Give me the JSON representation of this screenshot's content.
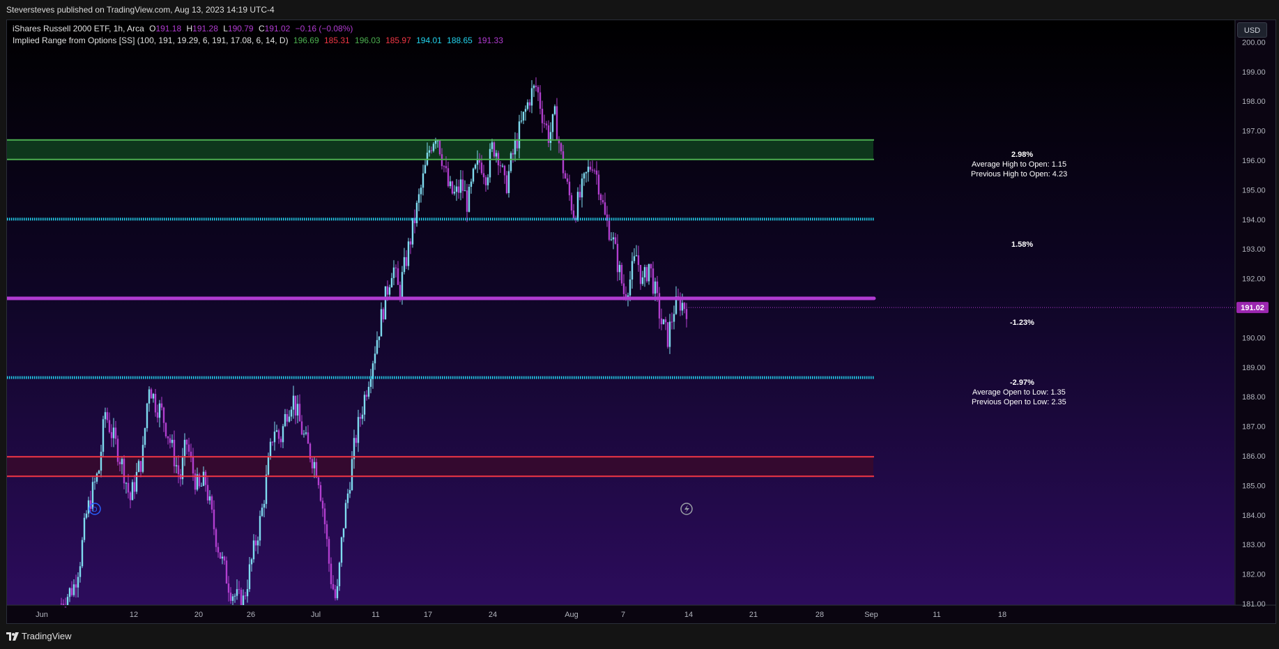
{
  "publisher": "Steversteves published on TradingView.com, Aug 13, 2023 14:19 UTC-4",
  "currency_button": "USD",
  "footer_logo": "TradingView",
  "legend": {
    "symbol": "iShares Russell 2000 ETF, 1h, Arca",
    "ohlc": [
      {
        "label": "O",
        "value": "191.18"
      },
      {
        "label": "H",
        "value": "191.28"
      },
      {
        "label": "L",
        "value": "190.79"
      },
      {
        "label": "C",
        "value": "191.02"
      }
    ],
    "change": "−0.16 (−0.08%)",
    "indicator": "Implied Range from Options [SS] (100, 191, 19.29, 6, 191, 17.08, 6, 14, D)",
    "indicator_values": [
      {
        "value": "196.69",
        "color": "#4caf50"
      },
      {
        "value": "185.31",
        "color": "#f23645"
      },
      {
        "value": "196.03",
        "color": "#4caf50"
      },
      {
        "value": "185.97",
        "color": "#f23645"
      },
      {
        "value": "194.01",
        "color": "#22d3ee"
      },
      {
        "value": "188.65",
        "color": "#22d3ee"
      },
      {
        "value": "191.33",
        "color": "#b13bd1"
      }
    ]
  },
  "annotations": {
    "upper_pct": "2.98%",
    "avg_high_to_open": "Average High to Open: 1.15",
    "prev_high_to_open": "Previous High to Open: 4.23",
    "upper_mid_pct": "1.58%",
    "lower_mid_pct": "-1.23%",
    "lower_pct": "-2.97%",
    "avg_open_to_low": "Average Open to Low: 1.35",
    "prev_open_to_low": "Previous Open to Low: 2.35"
  },
  "colors": {
    "bull": "#7fdcf0",
    "bear": "#b23fcf",
    "green": "#4caf50",
    "red": "#f23645",
    "cyan": "#22d3ee",
    "magenta": "#b13bd1"
  },
  "chart_data": {
    "type": "candlestick",
    "title": "iShares Russell 2000 ETF, 1h, Arca",
    "ylim": [
      181.0,
      200.0
    ],
    "y_ticks": [
      "181.00",
      "182.00",
      "183.00",
      "184.00",
      "185.00",
      "186.00",
      "187.00",
      "188.00",
      "189.00",
      "190.00",
      "191.00",
      "192.00",
      "193.00",
      "194.00",
      "195.00",
      "196.00",
      "197.00",
      "198.00",
      "199.00",
      "200.00"
    ],
    "x_ticks": [
      "Jun",
      "12",
      "20",
      "26",
      "Jul",
      "11",
      "17",
      "24",
      "Aug",
      "7",
      "14",
      "21",
      "28",
      "Sep",
      "11",
      "18"
    ],
    "last_price": "191.02",
    "levels": [
      {
        "name": "upper range 1",
        "value": 196.69,
        "color": "green"
      },
      {
        "name": "upper range 2",
        "value": 196.03,
        "color": "green"
      },
      {
        "name": "upper expected",
        "value": 194.01,
        "color": "cyan"
      },
      {
        "name": "open",
        "value": 191.33,
        "color": "magenta"
      },
      {
        "name": "lower expected",
        "value": 188.65,
        "color": "cyan"
      },
      {
        "name": "lower range 2",
        "value": 185.97,
        "color": "red"
      },
      {
        "name": "lower range 1",
        "value": 185.31,
        "color": "red"
      }
    ],
    "price_path": [
      181.0,
      181.3,
      181.6,
      182.5,
      184.0,
      184.8,
      185.5,
      187.5,
      186.8,
      186.2,
      185.5,
      184.5,
      185.3,
      186.0,
      188.5,
      187.8,
      187.5,
      186.8,
      186.0,
      185.2,
      186.5,
      185.5,
      184.8,
      185.2,
      184.0,
      183.0,
      182.2,
      181.5,
      181.2,
      181.0,
      182.0,
      183.0,
      184.0,
      185.5,
      187.0,
      186.5,
      187.5,
      188.0,
      187.2,
      186.5,
      186.0,
      185.5,
      184.0,
      182.0,
      181.0,
      183.5,
      185.0,
      186.5,
      187.5,
      188.5,
      189.5,
      190.5,
      191.5,
      192.5,
      191.5,
      192.5,
      193.5,
      194.5,
      195.5,
      196.5,
      197.0,
      196.0,
      195.0,
      194.8,
      195.2,
      194.5,
      195.5,
      196.0,
      195.5,
      196.5,
      196.2,
      195.0,
      196.0,
      196.8,
      197.5,
      198.2,
      198.5,
      197.5,
      196.8,
      197.5,
      196.0,
      195.0,
      194.2,
      194.8,
      195.5,
      196.0,
      195.2,
      194.0,
      193.5,
      192.5,
      191.5,
      192.0,
      192.8,
      191.8,
      192.5,
      191.5,
      190.5,
      190.0,
      191.0,
      191.2,
      191.02
    ]
  }
}
